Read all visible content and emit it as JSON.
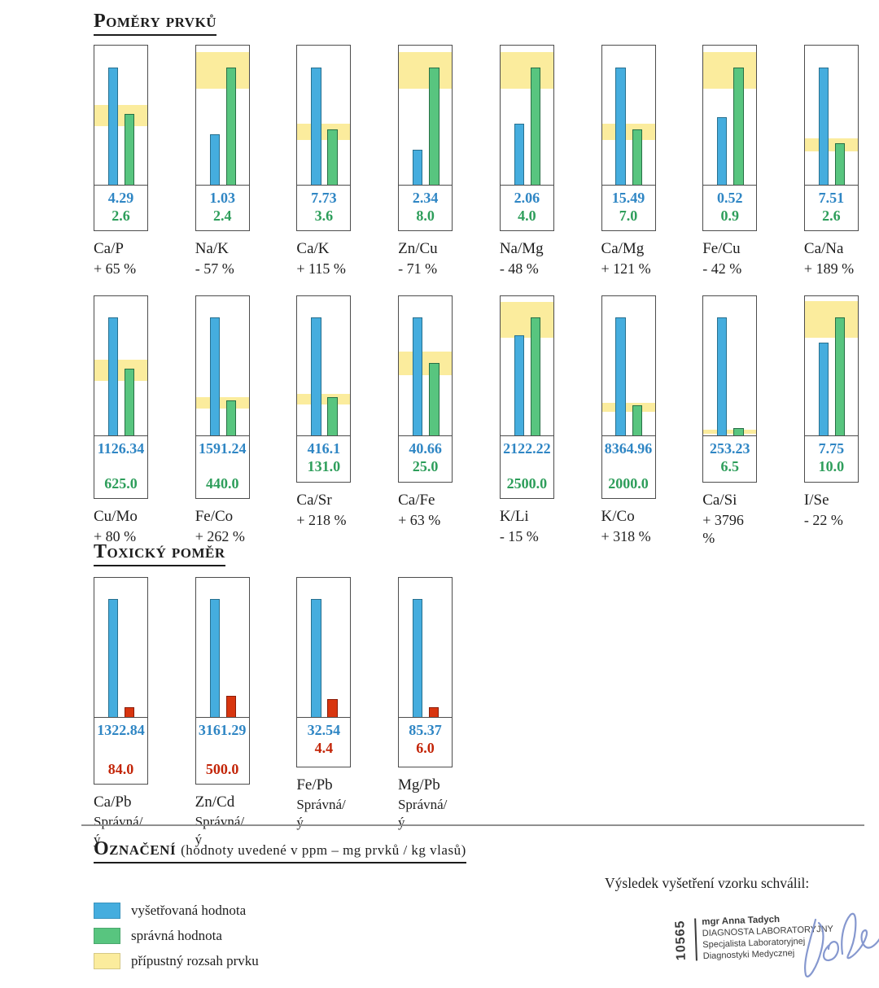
{
  "sections": {
    "ratios_title": "Poměry prvků",
    "toxic_title": "Toxický poměr",
    "legend_title": "Označení",
    "legend_subtitle": "(hodnoty uvedené v ppm – mg prvků / kg vlasů)",
    "approval_label": "Výsledek vyšetření vzorku schválil:"
  },
  "colors": {
    "measured": "#45ADDE",
    "measured_border": "#27708f",
    "correct": "#58C57F",
    "correct_border": "#276f45",
    "toxic": "#D8350F",
    "toxic_border": "#8a1c08",
    "range": "#FBEC9D",
    "measured_text": "#2F86C4",
    "correct_text": "#2E9E5B",
    "toxic_text": "#C32508"
  },
  "chart_data": {
    "type": "bar",
    "note": "hodnoty uvedené v ppm – mg prvků / kg vlasů",
    "rows": [
      {
        "name": "ratios-row-1",
        "kind": "ratio",
        "items": [
          {
            "ratio": "Ca/P",
            "measured": 4.29,
            "reference": 2.6,
            "measured_display": "4.29",
            "reference_display": "2.6",
            "deviation": "+ 65 %",
            "bars": {
              "measured_h": 0.84,
              "reference_h": 0.51,
              "band": [
                0.42,
                0.575
              ],
              "value_box_h": 56
            }
          },
          {
            "ratio": "Na/K",
            "measured": 1.03,
            "reference": 2.4,
            "measured_display": "1.03",
            "reference_display": "2.4",
            "deviation": "- 57 %",
            "bars": {
              "measured_h": 0.36,
              "reference_h": 0.84,
              "band": [
                0.69,
                0.955
              ],
              "value_box_h": 56
            }
          },
          {
            "ratio": "Ca/K",
            "measured": 7.73,
            "reference": 3.6,
            "measured_display": "7.73",
            "reference_display": "3.6",
            "deviation": "+ 115 %",
            "bars": {
              "measured_h": 0.84,
              "reference_h": 0.4,
              "band": [
                0.32,
                0.44
              ],
              "value_box_h": 56
            }
          },
          {
            "ratio": "Zn/Cu",
            "measured": 2.34,
            "reference": 8.0,
            "measured_display": "2.34",
            "reference_display": "8.0",
            "deviation": "- 71 %",
            "bars": {
              "measured_h": 0.25,
              "reference_h": 0.84,
              "band": [
                0.69,
                0.955
              ],
              "value_box_h": 56
            }
          },
          {
            "ratio": "Na/Mg",
            "measured": 2.06,
            "reference": 4.0,
            "measured_display": "2.06",
            "reference_display": "4.0",
            "deviation": "- 48 %",
            "bars": {
              "measured_h": 0.44,
              "reference_h": 0.84,
              "band": [
                0.69,
                0.955
              ],
              "value_box_h": 56
            }
          },
          {
            "ratio": "Ca/Mg",
            "measured": 15.49,
            "reference": 7.0,
            "measured_display": "15.49",
            "reference_display": "7.0",
            "deviation": "+ 121 %",
            "bars": {
              "measured_h": 0.84,
              "reference_h": 0.4,
              "band": [
                0.32,
                0.44
              ],
              "value_box_h": 56
            }
          },
          {
            "ratio": "Fe/Cu",
            "measured": 0.52,
            "reference": 0.9,
            "measured_display": "0.52",
            "reference_display": "0.9",
            "deviation": "- 42 %",
            "bars": {
              "measured_h": 0.485,
              "reference_h": 0.84,
              "band": [
                0.69,
                0.955
              ],
              "value_box_h": 56
            }
          },
          {
            "ratio": "Ca/Na",
            "measured": 7.51,
            "reference": 2.6,
            "measured_display": "7.51",
            "reference_display": "2.6",
            "deviation": "+ 189 %",
            "bars": {
              "measured_h": 0.84,
              "reference_h": 0.3,
              "band": [
                0.24,
                0.335
              ],
              "value_box_h": 56
            }
          }
        ]
      },
      {
        "name": "ratios-row-2",
        "kind": "ratio",
        "items": [
          {
            "ratio": "Cu/Mo",
            "measured": 1126.34,
            "reference": 625.0,
            "measured_display": "1126.34",
            "reference_display": "625.0",
            "deviation": "+ 80 %",
            "bars": {
              "measured_h": 0.85,
              "reference_h": 0.48,
              "band": [
                0.39,
                0.545
              ],
              "value_box_h": 77
            }
          },
          {
            "ratio": "Fe/Co",
            "measured": 1591.24,
            "reference": 440.0,
            "measured_display": "1591.24",
            "reference_display": "440.0",
            "deviation": "+ 262 %",
            "bars": {
              "measured_h": 0.85,
              "reference_h": 0.25,
              "band": [
                0.195,
                0.275
              ],
              "value_box_h": 77
            }
          },
          {
            "ratio": "Ca/Sr",
            "measured": 416.1,
            "reference": 131.0,
            "measured_display": "416.1",
            "reference_display": "131.0",
            "deviation": "+ 218 %",
            "bars": {
              "measured_h": 0.85,
              "reference_h": 0.275,
              "band": [
                0.225,
                0.3
              ],
              "value_box_h": 57
            }
          },
          {
            "ratio": "Ca/Fe",
            "measured": 40.66,
            "reference": 25.0,
            "measured_display": "40.66",
            "reference_display": "25.0",
            "deviation": "+ 63 %",
            "bars": {
              "measured_h": 0.85,
              "reference_h": 0.52,
              "band": [
                0.435,
                0.6
              ],
              "value_box_h": 57
            }
          },
          {
            "ratio": "K/Li",
            "measured": 2122.22,
            "reference": 2500.0,
            "measured_display": "2122.22",
            "reference_display": "2500.0",
            "deviation": "- 15 %",
            "bars": {
              "measured_h": 0.72,
              "reference_h": 0.85,
              "band": [
                0.7,
                0.96
              ],
              "value_box_h": 77
            }
          },
          {
            "ratio": "K/Co",
            "measured": 8364.96,
            "reference": 2000.0,
            "measured_display": "8364.96",
            "reference_display": "2000.0",
            "deviation": "+ 318 %",
            "bars": {
              "measured_h": 0.85,
              "reference_h": 0.215,
              "band": [
                0.17,
                0.235
              ],
              "value_box_h": 77
            }
          },
          {
            "ratio": "Ca/Si",
            "measured": 253.23,
            "reference": 6.5,
            "measured_display": "253.23",
            "reference_display": "6.5",
            "deviation": "+ 3796 %",
            "bars": {
              "measured_h": 0.85,
              "reference_h": 0.05,
              "band": [
                0.012,
                0.04
              ],
              "value_box_h": 57
            }
          },
          {
            "ratio": "I/Se",
            "measured": 7.75,
            "reference": 10.0,
            "measured_display": "7.75",
            "reference_display": "10.0",
            "deviation": "- 22 %",
            "bars": {
              "measured_h": 0.665,
              "reference_h": 0.85,
              "band": [
                0.7,
                0.965
              ],
              "value_box_h": 57
            }
          }
        ]
      },
      {
        "name": "toxic-row",
        "kind": "toxic",
        "items": [
          {
            "ratio": "Ca/Pb",
            "measured": 1322.84,
            "reference": 84.0,
            "measured_display": "1322.84",
            "reference_display": "84.0",
            "deviation": "Správná/ý",
            "bars": {
              "measured_h": 0.85,
              "reference_h": 0.07,
              "band": null,
              "value_box_h": 82
            }
          },
          {
            "ratio": "Zn/Cd",
            "measured": 3161.29,
            "reference": 500.0,
            "measured_display": "3161.29",
            "reference_display": "500.0",
            "deviation": "Správná/ý",
            "bars": {
              "measured_h": 0.85,
              "reference_h": 0.15,
              "band": null,
              "value_box_h": 82
            }
          },
          {
            "ratio": "Fe/Pb",
            "measured": 32.54,
            "reference": 4.4,
            "measured_display": "32.54",
            "reference_display": "4.4",
            "deviation": "Správná/ý",
            "bars": {
              "measured_h": 0.85,
              "reference_h": 0.13,
              "band": null,
              "value_box_h": 61
            }
          },
          {
            "ratio": "Mg/Pb",
            "measured": 85.37,
            "reference": 6.0,
            "measured_display": "85.37",
            "reference_display": "6.0",
            "deviation": "Správná/ý",
            "bars": {
              "measured_h": 0.85,
              "reference_h": 0.07,
              "band": null,
              "value_box_h": 61
            }
          }
        ]
      }
    ]
  },
  "legend": {
    "items": [
      {
        "name": "measured",
        "label": "vyšetřovaná hodnota"
      },
      {
        "name": "correct",
        "label": "správná hodnota"
      },
      {
        "name": "range",
        "label": "přípustný rozsah prvku"
      }
    ]
  },
  "stamp": {
    "number": "10565",
    "name": "mgr Anna Tadych",
    "line1": "DIAGNOSTA LABORATORYJNY",
    "line2": "Specjalista Laboratoryjnej",
    "line3": "Diagnostyki Medycznej"
  }
}
